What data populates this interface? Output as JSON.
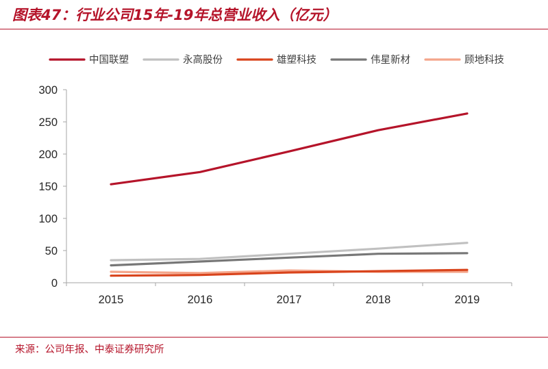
{
  "header": {
    "title": "图表47：行业公司15年-19年总营业收入（亿元）"
  },
  "footer": {
    "source": "来源：公司年报、中泰证券研究所"
  },
  "chart_data": {
    "type": "line",
    "title": "图表47：行业公司15年-19年总营业收入（亿元）",
    "xlabel": "",
    "ylabel": "",
    "categories": [
      "2015",
      "2016",
      "2017",
      "2018",
      "2019"
    ],
    "ylim": [
      0,
      300
    ],
    "yticks": [
      0,
      50,
      100,
      150,
      200,
      250,
      300
    ],
    "grid": false,
    "legend_position": "top",
    "series": [
      {
        "name": "中国联塑",
        "color": "#b5142a",
        "values": [
          153,
          172,
          204,
          237,
          263
        ]
      },
      {
        "name": "永高股份",
        "color": "#c0c0c0",
        "values": [
          35,
          37,
          45,
          53,
          62
        ]
      },
      {
        "name": "雄塑科技",
        "color": "#d9441c",
        "values": [
          11,
          12,
          16,
          18,
          20
        ]
      },
      {
        "name": "伟星新材",
        "color": "#777777",
        "values": [
          27,
          33,
          39,
          45,
          46
        ]
      },
      {
        "name": "顾地科技",
        "color": "#f4a58a",
        "values": [
          17,
          15,
          19,
          17,
          17
        ]
      }
    ]
  }
}
